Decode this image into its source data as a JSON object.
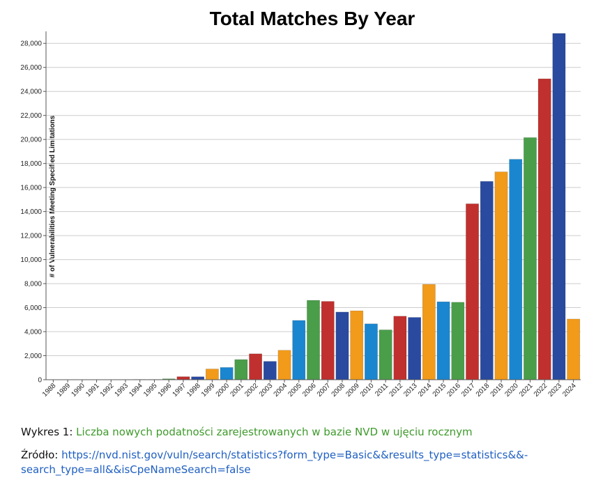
{
  "chart_data": {
    "type": "bar",
    "title": "Total Matches By Year",
    "ylabel": "# of Vulnerabilities Meeting Specified Limitations",
    "xlabel": "",
    "ylim": [
      0,
      29000
    ],
    "yticks": [
      0,
      2000,
      4000,
      6000,
      8000,
      10000,
      12000,
      14000,
      16000,
      18000,
      20000,
      22000,
      24000,
      26000,
      28000
    ],
    "ytick_labels": [
      "0",
      "2,000",
      "4,000",
      "6,000",
      "8,000",
      "10,000",
      "12,000",
      "14,000",
      "16,000",
      "18,000",
      "20,000",
      "22,000",
      "24,000",
      "26,000",
      "28,000"
    ],
    "grid": true,
    "categories": [
      "1988",
      "1989",
      "1990",
      "1991",
      "1992",
      "1993",
      "1994",
      "1995",
      "1996",
      "1997",
      "1998",
      "1999",
      "2000",
      "2001",
      "2002",
      "2003",
      "2004",
      "2005",
      "2006",
      "2007",
      "2008",
      "2009",
      "2010",
      "2011",
      "2012",
      "2013",
      "2014",
      "2015",
      "2016",
      "2017",
      "2018",
      "2019",
      "2020",
      "2021",
      "2022",
      "2023",
      "2024"
    ],
    "values": [
      2,
      3,
      11,
      15,
      13,
      13,
      25,
      25,
      75,
      252,
      246,
      894,
      1020,
      1677,
      2156,
      1527,
      2451,
      4935,
      6610,
      6520,
      5632,
      5736,
      4652,
      4150,
      5288,
      5187,
      7937,
      6487,
      6447,
      14645,
      16509,
      17305,
      18350,
      20155,
      25050,
      28830,
      5050
    ],
    "bar_colors": [
      "#2a4aa0",
      "#2a4aa0",
      "#2a4aa0",
      "#2a4aa0",
      "#2a4aa0",
      "#2a4aa0",
      "#2a4aa0",
      "#f29a1a",
      "#4a9e4a",
      "#c0302e",
      "#2a4aa0",
      "#f29a1a",
      "#1a86d0",
      "#4a9e4a",
      "#c0302e",
      "#2a4aa0",
      "#f29a1a",
      "#1a86d0",
      "#4a9e4a",
      "#c0302e",
      "#2a4aa0",
      "#f29a1a",
      "#1a86d0",
      "#4a9e4a",
      "#c0302e",
      "#2a4aa0",
      "#f29a1a",
      "#1a86d0",
      "#4a9e4a",
      "#c0302e",
      "#2a4aa0",
      "#f29a1a",
      "#1a86d0",
      "#4a9e4a",
      "#c0302e",
      "#2a4aa0",
      "#f29a1a"
    ]
  },
  "caption": {
    "figure_label": "Wykres 1:",
    "figure_text": "Liczba nowych podatności zarejestrowanych w bazie NVD w ujęciu rocznym",
    "source_label": "Źródło:",
    "source_url": "https://nvd.nist.gov/vuln/search/statistics?form_type=Basic&&results_type=statistics&&search_type=all&&isCpeNameSearch=false",
    "source_url_display": "https://nvd.nist.gov/vuln/search/statistics?form_type=Basic&&results_type=statistics&&-search_type=all&&isCpeNameSearch=false"
  },
  "colors": {
    "grid": "#cccccc",
    "axis": "#555555",
    "figure_text": "#3e9a2b",
    "link": "#1f5fc2"
  }
}
